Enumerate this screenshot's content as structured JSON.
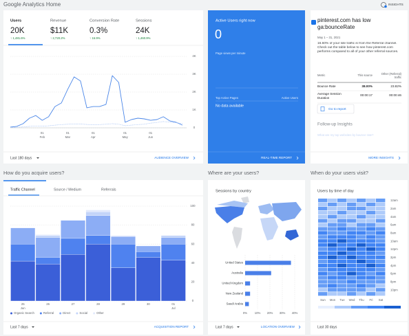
{
  "header": {
    "title": "Google Analytics Home",
    "insights": "INSIGHTS"
  },
  "overview": {
    "metrics": [
      {
        "label": "Users",
        "value": "20K",
        "change": "↑ 1,481.6%"
      },
      {
        "label": "Revenue",
        "value": "$11K",
        "change": "↑ 2,720.2%"
      },
      {
        "label": "Conversion Rate",
        "value": "0.3%",
        "change": "↑ 16.9%"
      },
      {
        "label": "Sessions",
        "value": "24K",
        "change": "↑ 1,460.9%"
      }
    ],
    "chart": {
      "type": "line",
      "categories": [
        null,
        null,
        null,
        null,
        null,
        "01 Feb",
        null,
        null,
        null,
        "01 Mar",
        null,
        null,
        null,
        "01 Apr",
        null,
        null,
        null,
        null,
        "01 May",
        null,
        null,
        null,
        "01 Jun",
        null,
        null,
        null,
        null,
        null
      ],
      "series": [
        {
          "color": "#4a86e8",
          "values": [
            40,
            80,
            230,
            540,
            690,
            420,
            620,
            1190,
            1390,
            2150,
            2850,
            2620,
            1120,
            1190,
            1190,
            1310,
            2920,
            2540,
            310,
            460,
            540,
            500,
            420,
            460,
            620,
            390,
            310,
            150
          ]
        },
        {
          "color": "#a9c5f5",
          "dashed": true,
          "values": [
            20,
            30,
            50,
            80,
            100,
            90,
            110,
            150,
            180,
            200,
            220,
            210,
            190,
            170,
            180,
            200,
            230,
            200,
            120,
            150,
            180,
            200,
            260,
            300,
            350,
            320,
            280,
            240
          ]
        }
      ],
      "ylim": [
        0,
        4000
      ],
      "yticks": [
        0,
        {
          "value": 1000,
          "label": "1K"
        },
        {
          "value": 2000,
          "label": "2K"
        },
        {
          "value": 3000,
          "label": "3K"
        },
        {
          "value": 4000,
          "label": "4K"
        }
      ],
      "grid": true
    },
    "range": "Last 180 days",
    "link": "AUDIENCE OVERVIEW"
  },
  "realtime": {
    "title": "Active Users right now",
    "value": "0",
    "subtitle": "Page views per minute",
    "table_headers": [
      "Top Active Pages",
      "Active Users"
    ],
    "empty": "No data available",
    "link": "REAL-TIME REPORT"
  },
  "insight": {
    "title": "pinterest.com has low ga:bounceRate",
    "date": "May 1 – 31, 2021",
    "text": "16.60% of your site traffic is from the Referral channel. Check out the table below to see how pinterest.com performs compared to all of your other referral sources.",
    "table": {
      "headers": [
        "Metric",
        "This source",
        "Other (Referral) traffic"
      ],
      "rows": [
        [
          "Bounce Rate",
          "38.00%",
          "23.82%"
        ],
        [
          "Average Session Duration",
          "00:00:17",
          "00:00:46"
        ]
      ]
    },
    "button": "Go to report",
    "followup": "Follow-up Insights",
    "question": "What are my top websites by bounce rate?",
    "link": "MORE INSIGHTS"
  },
  "sections": [
    "How do you acquire users?",
    "Where are your users?",
    "When do your users visit?"
  ],
  "acquisition": {
    "tabs": [
      "Traffic Channel",
      "Source / Medium",
      "Referrals"
    ],
    "chart": {
      "type": "bar",
      "stacked": true,
      "categories": [
        "25 Jun",
        "26",
        "27",
        "28",
        "29",
        "30",
        "01 Jul"
      ],
      "series": [
        {
          "name": "Organic Search",
          "color": "#3b5fd8",
          "values": [
            42,
            39,
            49,
            60,
            35,
            46,
            43
          ]
        },
        {
          "name": "Referral",
          "color": "#4f82ef",
          "values": [
            18,
            7,
            17,
            9,
            25,
            6,
            17
          ]
        },
        {
          "name": "Direct",
          "color": "#8cadf5",
          "values": [
            17,
            21,
            19,
            21,
            8,
            6,
            7
          ]
        },
        {
          "name": "Social",
          "color": "#c3d4f9",
          "values": [
            0,
            2,
            0,
            4,
            0,
            0,
            2
          ]
        },
        {
          "name": "Other",
          "color": "#e2e9fc",
          "values": [
            0,
            1,
            0,
            2,
            1,
            0,
            0
          ]
        }
      ],
      "ylim": [
        0,
        100
      ],
      "yticks": [
        0,
        20,
        40,
        60,
        80,
        100
      ],
      "grid": true
    },
    "range": "Last 7 days",
    "link": "ACQUISITION REPORT"
  },
  "location": {
    "title": "Sessions by country",
    "chart": {
      "type": "bar",
      "orientation": "horizontal",
      "categories": [
        "United States",
        "Australia",
        "United Kingdom",
        "New Zealand",
        "Saudi Arabia"
      ],
      "values": [
        37,
        21,
        4,
        4,
        3
      ],
      "color": "#4a7fe8",
      "xlim": [
        0,
        40
      ],
      "xticks": [
        {
          "value": 0,
          "label": "0%"
        },
        {
          "value": 10,
          "label": "10%"
        },
        {
          "value": 20,
          "label": "20%"
        },
        {
          "value": 30,
          "label": "30%"
        },
        {
          "value": 40,
          "label": "40%"
        }
      ],
      "grid": true
    },
    "range": "Last 7 days",
    "link": "LOCATION OVERVIEW"
  },
  "time": {
    "title": "Users by time of day",
    "chart": {
      "type": "heatmap",
      "columns": [
        "Sun",
        "Mon",
        "Tue",
        "Wed",
        "Thu",
        "Fri",
        "Sat"
      ],
      "rows": [
        "12am",
        null,
        "2am",
        null,
        "4am",
        null,
        "6am",
        null,
        "8am",
        null,
        "10am",
        null,
        "12pm",
        null,
        "2pm",
        null,
        "4pm",
        null,
        "6pm",
        null,
        "8pm",
        null,
        "10pm",
        null
      ],
      "values": [
        [
          2,
          1,
          2,
          1,
          2,
          1,
          2
        ],
        [
          1,
          2,
          1,
          2,
          1,
          2,
          1
        ],
        [
          2,
          1,
          1,
          2,
          2,
          1,
          1
        ],
        [
          1,
          1,
          2,
          1,
          1,
          2,
          1
        ],
        [
          1,
          2,
          1,
          1,
          2,
          1,
          1
        ],
        [
          2,
          1,
          2,
          2,
          1,
          1,
          2
        ],
        [
          1,
          2,
          2,
          1,
          2,
          2,
          1
        ],
        [
          2,
          2,
          3,
          2,
          2,
          3,
          2
        ],
        [
          3,
          2,
          2,
          3,
          3,
          2,
          3
        ],
        [
          2,
          3,
          3,
          3,
          2,
          3,
          2
        ],
        [
          3,
          3,
          4,
          3,
          3,
          3,
          2
        ],
        [
          3,
          4,
          3,
          3,
          4,
          3,
          3
        ],
        [
          2,
          3,
          3,
          4,
          3,
          4,
          3
        ],
        [
          3,
          3,
          4,
          3,
          3,
          3,
          2
        ],
        [
          3,
          4,
          3,
          4,
          3,
          3,
          3
        ],
        [
          2,
          3,
          3,
          3,
          4,
          3,
          2
        ],
        [
          3,
          3,
          4,
          3,
          3,
          4,
          3
        ],
        [
          2,
          3,
          3,
          3,
          3,
          3,
          2
        ],
        [
          3,
          2,
          3,
          4,
          3,
          2,
          3
        ],
        [
          2,
          3,
          3,
          2,
          3,
          3,
          2
        ],
        [
          2,
          2,
          2,
          3,
          2,
          2,
          2
        ],
        [
          2,
          3,
          2,
          2,
          3,
          2,
          1
        ],
        [
          1,
          2,
          2,
          2,
          2,
          1,
          2
        ],
        [
          2,
          1,
          1,
          2,
          1,
          2,
          1
        ]
      ],
      "colors": [
        "#e8f0fe",
        "#aecbfa",
        "#669df6",
        "#4285f4",
        "#1a5fd0"
      ]
    },
    "range": "Last 30 days"
  }
}
